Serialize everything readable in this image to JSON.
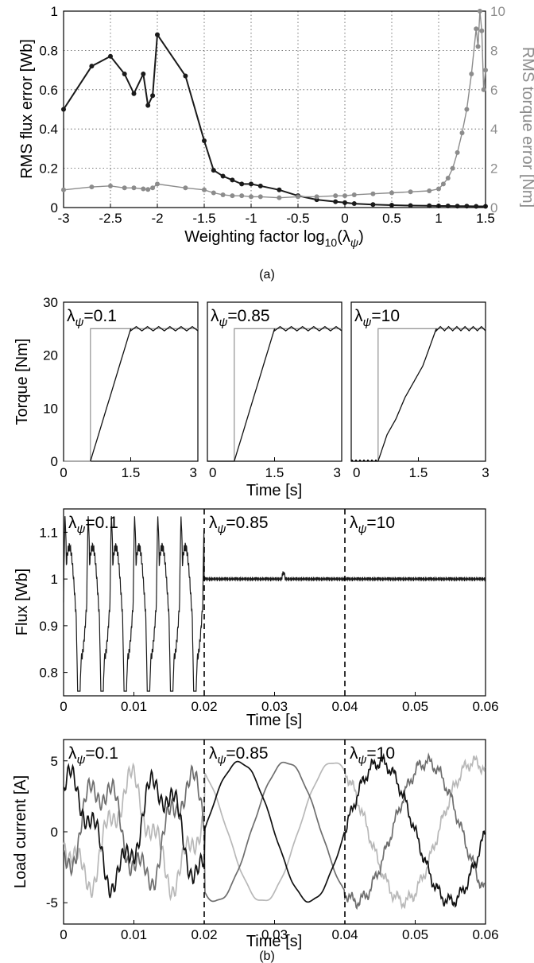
{
  "captions": {
    "a": "(a)",
    "b": "(b)"
  },
  "colors": {
    "flux": "#1a1a1a",
    "torque": "#8c8c8c",
    "ref": "#999999",
    "phase_a": "#111111",
    "phase_b": "#6e6e6e",
    "phase_c": "#b8b8b8"
  },
  "chart_data": [
    {
      "id": "rms-errors",
      "type": "line",
      "xlabel": "Weighting factor log₁₀(λψ)",
      "ylabel": "RMS flux error [Wb]",
      "ylabel_right": "RMS torque error [Nm]",
      "xlim": [
        -3,
        1.5
      ],
      "ylim": [
        0,
        1
      ],
      "ylim_right": [
        0,
        10
      ],
      "grid": true,
      "xticks": [
        "-3",
        "-2.5",
        "-2",
        "-1.5",
        "-1",
        "-0.5",
        "0",
        "0.5",
        "1",
        "1.5"
      ],
      "yticks": [
        "0",
        "0.2",
        "0.4",
        "0.6",
        "0.8",
        "1"
      ],
      "yticks_right": [
        "0",
        "2",
        "4",
        "6",
        "8",
        "10"
      ],
      "series": [
        {
          "axis": "left",
          "x": [
            -3,
            -2.7,
            -2.5,
            -2.35,
            -2.25,
            -2.15,
            -2.1,
            -2.05,
            -2,
            -1.7,
            -1.5,
            -1.4,
            -1.3,
            -1.2,
            -1.1,
            -1,
            -0.9,
            -0.7,
            -0.5,
            -0.3,
            -0.1,
            0,
            0.1,
            0.3,
            0.5,
            0.7,
            0.9,
            1,
            1.1,
            1.2,
            1.3,
            1.4,
            1.5
          ],
          "y": [
            0.5,
            0.72,
            0.77,
            0.68,
            0.58,
            0.68,
            0.52,
            0.57,
            0.88,
            0.67,
            0.34,
            0.19,
            0.16,
            0.14,
            0.12,
            0.12,
            0.11,
            0.09,
            0.06,
            0.04,
            0.03,
            0.025,
            0.02,
            0.015,
            0.012,
            0.01,
            0.009,
            0.008,
            0.008,
            0.007,
            0.007,
            0.006,
            0.006
          ]
        },
        {
          "axis": "right",
          "x": [
            -3,
            -2.7,
            -2.5,
            -2.35,
            -2.25,
            -2.15,
            -2.1,
            -2.05,
            -2,
            -1.7,
            -1.5,
            -1.4,
            -1.3,
            -1.2,
            -1.1,
            -1,
            -0.9,
            -0.7,
            -0.5,
            -0.3,
            -0.1,
            0,
            0.1,
            0.3,
            0.5,
            0.7,
            0.9,
            1,
            1.05,
            1.1,
            1.15,
            1.2,
            1.25,
            1.3,
            1.35,
            1.4,
            1.42,
            1.44,
            1.46,
            1.48,
            1.5
          ],
          "y": [
            0.9,
            1.05,
            1.1,
            1.0,
            1.0,
            0.95,
            0.92,
            1.0,
            1.2,
            1.0,
            0.9,
            0.75,
            0.65,
            0.6,
            0.6,
            0.55,
            0.55,
            0.5,
            0.55,
            0.55,
            0.6,
            0.6,
            0.65,
            0.7,
            0.75,
            0.8,
            0.85,
            0.95,
            1.2,
            1.5,
            2.0,
            2.8,
            3.8,
            5.0,
            6.8,
            9.1,
            8.2,
            10.0,
            9.0,
            6.0,
            7.0
          ]
        }
      ]
    },
    {
      "id": "torque-panels",
      "type": "line",
      "ylabel": "Torque [Nm]",
      "xlabel": "Time [s]",
      "yticks": [
        "0",
        "10",
        "20",
        "30"
      ],
      "ylim": [
        0,
        30
      ],
      "xlim": [
        0,
        3
      ],
      "grid": false,
      "panels": [
        {
          "label": "λψ=0.1",
          "xticks": [
            "0",
            "1.5",
            "3"
          ],
          "ref_x": [
            0,
            0.6,
            0.6,
            3
          ],
          "ref_y": [
            0,
            0,
            25,
            25
          ],
          "resp_x": [
            0.6,
            1.5,
            3
          ],
          "resp_y": [
            0,
            25,
            25
          ]
        },
        {
          "label": "λψ=0.85",
          "xticks": [
            "0",
            "1.5",
            "3"
          ],
          "ref_x": [
            0,
            0.6,
            0.6,
            3
          ],
          "ref_y": [
            0,
            0,
            25,
            25
          ],
          "resp_x": [
            0,
            0.6,
            1.5,
            3
          ],
          "resp_y": [
            0,
            0,
            25,
            25
          ]
        },
        {
          "label": "λψ=10",
          "xticks": [
            "0",
            "1.5",
            "3"
          ],
          "ref_x": [
            0,
            0.6,
            0.6,
            3
          ],
          "ref_y": [
            0,
            0,
            25,
            25
          ],
          "resp_x": [
            0,
            0.6,
            0.8,
            1.0,
            1.2,
            1.4,
            1.6,
            1.9,
            3
          ],
          "resp_y": [
            0,
            0,
            5,
            8,
            12,
            15,
            18,
            25,
            25
          ]
        }
      ]
    },
    {
      "id": "flux",
      "type": "line",
      "ylabel": "Flux [Wb]",
      "xlabel": "Time [s]",
      "xlim": [
        0,
        0.06
      ],
      "ylim": [
        0.75,
        1.15
      ],
      "xticks": [
        "0",
        "0.01",
        "0.02",
        "0.03",
        "0.04",
        "0.05",
        "0.06"
      ],
      "yticks": [
        "0.8",
        "0.9",
        "1",
        "1.1"
      ],
      "segments": [
        "λψ=0.1",
        "λψ=0.85",
        "λψ=10"
      ],
      "oscillation": {
        "period": 0.0033,
        "max": 1.13,
        "min": 0.78,
        "steady": 1.0,
        "end_of_segment_1": 0.02
      }
    },
    {
      "id": "load-current",
      "type": "line",
      "ylabel": "Load current [A]",
      "xlabel": "Time [s]",
      "xlim": [
        0,
        0.06
      ],
      "ylim": [
        -6.5,
        6.5
      ],
      "xticks": [
        "0",
        "0.01",
        "0.02",
        "0.03",
        "0.04",
        "0.05",
        "0.06"
      ],
      "yticks": [
        "-5",
        "0",
        "5"
      ],
      "segments": [
        "λψ=0.1",
        "λψ=0.85",
        "λψ=10"
      ],
      "amplitude": 4.9,
      "frequency_hz": 50
    }
  ]
}
